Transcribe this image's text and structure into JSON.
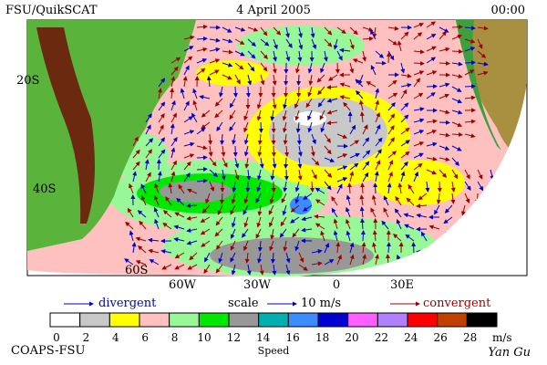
{
  "header": {
    "left": "FSU/QuikSCAT",
    "center": "4 April 2005",
    "right": "00:00"
  },
  "map": {
    "lat_labels": [
      "20S",
      "40S",
      "60S"
    ],
    "lon_labels": [
      "60W",
      "30W",
      "0",
      "30E"
    ]
  },
  "legend": {
    "divergent": "divergent",
    "scale": "scale",
    "scale_value": "10 m/s",
    "convergent": "convergent"
  },
  "colorbar": {
    "colors": [
      "#ffffff",
      "#c8c8c8",
      "#ffff00",
      "#ffc0c0",
      "#98f898",
      "#00e800",
      "#989898",
      "#00b0b0",
      "#3c8cff",
      "#0000d0",
      "#ff60ff",
      "#b080ff",
      "#ff0000",
      "#c04000",
      "#000000"
    ],
    "ticks": [
      0,
      2,
      4,
      6,
      8,
      10,
      12,
      14,
      16,
      18,
      20,
      22,
      24,
      26,
      28
    ],
    "unit": "m/s",
    "label": "Speed"
  },
  "footer": {
    "left": "COAPS-FSU",
    "right": "Yan Gu"
  }
}
